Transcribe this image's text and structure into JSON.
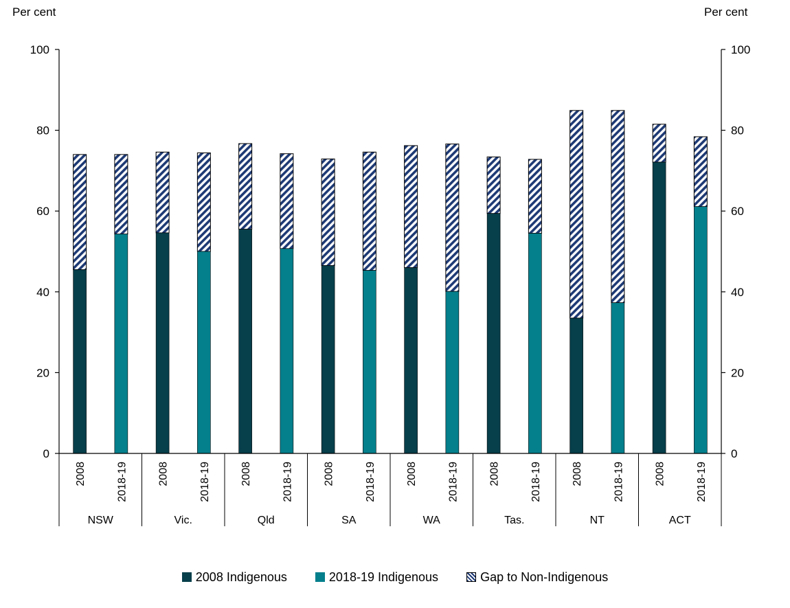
{
  "chart_data": {
    "type": "bar",
    "stacked": true,
    "ylabel_left": "Per cent",
    "ylabel_right": "Per cent",
    "ylim": [
      0,
      100
    ],
    "yticks": [
      0,
      20,
      40,
      60,
      80,
      100
    ],
    "groups": [
      "NSW",
      "Vic.",
      "Qld",
      "SA",
      "WA",
      "Tas.",
      "NT",
      "ACT"
    ],
    "periods": [
      "2008",
      "2018-19"
    ],
    "indigenous": {
      "2008": [
        45.5,
        54.6,
        55.5,
        46.5,
        46.0,
        59.4,
        33.5,
        72.1
      ],
      "2018-19": [
        54.3,
        50.0,
        50.7,
        45.3,
        40.1,
        54.5,
        37.3,
        61.1
      ]
    },
    "non_indigenous_total": {
      "2008": [
        74.0,
        74.6,
        76.7,
        72.9,
        76.2,
        73.4,
        84.9,
        81.5
      ],
      "2018-19": [
        74.0,
        74.4,
        74.2,
        74.6,
        76.6,
        72.8,
        84.9,
        78.4
      ]
    },
    "legend": [
      {
        "label": "2008 Indigenous",
        "color": "#073f4b",
        "pattern": "solid"
      },
      {
        "label": "2018-19 Indigenous",
        "color": "#047f8c",
        "pattern": "solid"
      },
      {
        "label": "Gap to Non-Indigenous",
        "color": "#1e3a75",
        "pattern": "hatched"
      }
    ],
    "colors": {
      "dark": "#073f4b",
      "teal": "#047f8c",
      "hatch": "#1e3a75"
    }
  }
}
